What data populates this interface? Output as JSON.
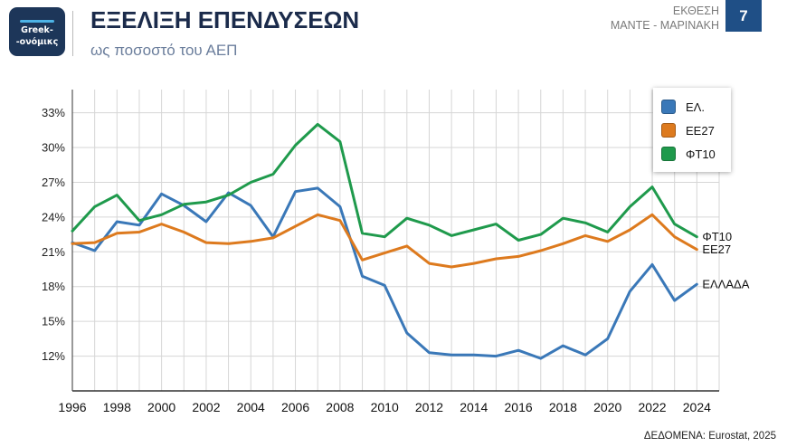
{
  "header": {
    "logo_line1": "Greek-",
    "logo_line2": "-ονόμικς",
    "report_label": "ΕΚΘΕΣΗ",
    "report_authors": "ΜΑΝΤΕ - ΜΑΡΙΝΑΚΗ",
    "page_number": "7"
  },
  "footer": {
    "source": "ΔΕΔΟΜΕΝΑ: Eurostat, 2025"
  },
  "colors": {
    "title": "#1b2b4b",
    "subtitle": "#6b7e9c",
    "logo_background": "#1d3659",
    "page_badge": "#1f4f86",
    "grid": "#d6d6d6"
  },
  "chart_data": {
    "type": "line",
    "title": "ΕΞΕΛΙΞΗ ΕΠΕΝΔΥΣΕΩΝ",
    "subtitle": "ως ποσοστό του ΑΕΠ",
    "x": [
      1996,
      1997,
      1998,
      1999,
      2000,
      2001,
      2002,
      2003,
      2004,
      2005,
      2006,
      2007,
      2008,
      2009,
      2010,
      2011,
      2012,
      2013,
      2014,
      2015,
      2016,
      2017,
      2018,
      2019,
      2020,
      2021,
      2022,
      2023,
      2024
    ],
    "xlim": [
      1996,
      2025
    ],
    "ylim": [
      9,
      35
    ],
    "x_ticks": [
      1996,
      1998,
      2000,
      2002,
      2004,
      2006,
      2008,
      2010,
      2012,
      2014,
      2016,
      2018,
      2020,
      2022,
      2024
    ],
    "x_tick_labels": [
      "1996",
      "1998",
      "2000",
      "2002",
      "2004",
      "2006",
      "2008",
      "2010",
      "2012",
      "2014",
      "2016",
      "2018",
      "2020",
      "2022",
      "2024"
    ],
    "y_ticks": [
      12,
      15,
      18,
      21,
      24,
      27,
      30,
      33
    ],
    "y_tick_labels": [
      "12%",
      "15%",
      "18%",
      "21%",
      "24%",
      "27%",
      "30%",
      "33%"
    ],
    "grid": true,
    "legend_position": "top-right",
    "series": [
      {
        "name": "ΕΛ.",
        "end_label": "ΕΛΛΑΔΑ",
        "color": "#3a78b8",
        "values": [
          21.8,
          21.1,
          23.6,
          23.3,
          26.0,
          25.0,
          23.6,
          26.1,
          25.0,
          22.3,
          26.2,
          26.5,
          24.9,
          18.9,
          18.1,
          14.0,
          12.3,
          12.1,
          12.1,
          12.0,
          12.5,
          11.8,
          12.9,
          12.1,
          13.5,
          17.6,
          19.9,
          16.8,
          18.2
        ]
      },
      {
        "name": "ΕΕ27",
        "end_label": "ΕΕ27",
        "color": "#dd7a1e",
        "values": [
          21.7,
          21.8,
          22.6,
          22.7,
          23.4,
          22.7,
          21.8,
          21.7,
          21.9,
          22.2,
          23.2,
          24.2,
          23.7,
          20.3,
          20.9,
          21.5,
          20.0,
          19.7,
          20.0,
          20.4,
          20.6,
          21.1,
          21.7,
          22.4,
          21.9,
          22.9,
          24.2,
          22.3,
          21.2
        ]
      },
      {
        "name": "ΦΤ10",
        "end_label": "ΦΤ10",
        "color": "#1f9a4c",
        "values": [
          22.8,
          24.9,
          25.9,
          23.7,
          24.2,
          25.1,
          25.3,
          25.9,
          27.0,
          27.7,
          30.2,
          32.0,
          30.5,
          22.6,
          22.3,
          23.9,
          23.3,
          22.4,
          22.9,
          23.4,
          22.0,
          22.5,
          23.9,
          23.5,
          22.7,
          24.9,
          26.6,
          23.4,
          22.3
        ]
      }
    ]
  }
}
